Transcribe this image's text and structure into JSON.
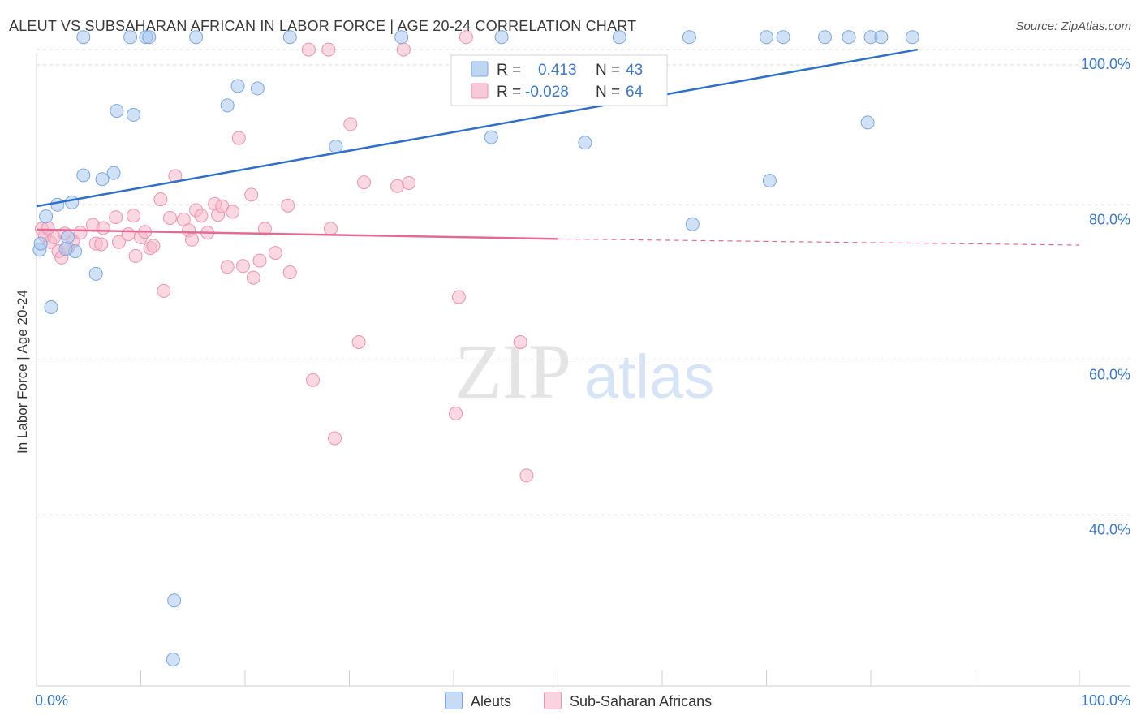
{
  "title": "ALEUT VS SUBSAHARAN AFRICAN IN LABOR FORCE | AGE 20-24 CORRELATION CHART",
  "source": "Source: ZipAtlas.com",
  "watermark": {
    "zip": "ZIP",
    "atlas": "atlas"
  },
  "colors": {
    "aleut_fill": "#a9c8ee",
    "aleut_stroke": "#7aa7de",
    "aleut_line": "#2f6fcc",
    "ssa_fill": "#f5b8cb",
    "ssa_stroke": "#ec92b0",
    "ssa_line": "#e56a93",
    "axis_text": "#3d78c9",
    "grid": "#d9d9d9"
  },
  "chart_data": {
    "type": "scatter",
    "xlabel": "",
    "ylabel": "In Labor Force | Age 20-24",
    "xlim": [
      0,
      100
    ],
    "ylim": [
      18,
      100
    ],
    "x_tick_labels": [
      "0.0%",
      "100.0%"
    ],
    "y_ticks": [
      40,
      60,
      80,
      100
    ],
    "y_tick_labels": [
      "40.0%",
      "60.0%",
      "80.0%",
      "100.0%"
    ],
    "grid": "horizontal dashed",
    "legend": {
      "placement": "top-center",
      "rows": [
        {
          "r_label": "R =",
          "r_value": "0.413",
          "n_label": "N =",
          "n_value": "43"
        },
        {
          "r_label": "R =",
          "r_value": "-0.028",
          "n_label": "N =",
          "n_value": "64"
        }
      ]
    },
    "series": [
      {
        "name": "Aleuts",
        "trend": {
          "x0": 0,
          "y0": 79.8,
          "x1": 84.5,
          "y1": 100.0
        },
        "points": [
          [
            0.3,
            74.2
          ],
          [
            0.9,
            78.5
          ],
          [
            1.4,
            66.8
          ],
          [
            2.0,
            80.0
          ],
          [
            3.4,
            80.3
          ],
          [
            3.7,
            74.0
          ],
          [
            3.0,
            75.8
          ],
          [
            2.8,
            74.3
          ],
          [
            4.5,
            83.8
          ],
          [
            5.7,
            71.1
          ],
          [
            6.3,
            83.3
          ],
          [
            7.4,
            84.1
          ],
          [
            7.7,
            92.1
          ],
          [
            9.3,
            91.6
          ],
          [
            4.5,
            101.6
          ],
          [
            9.0,
            101.6
          ],
          [
            10.5,
            101.6
          ],
          [
            10.8,
            101.6
          ],
          [
            15.3,
            101.6
          ],
          [
            18.3,
            92.8
          ],
          [
            19.3,
            95.3
          ],
          [
            21.2,
            95.0
          ],
          [
            24.3,
            101.6
          ],
          [
            28.7,
            87.5
          ],
          [
            35.0,
            101.6
          ],
          [
            43.6,
            88.7
          ],
          [
            44.6,
            101.6
          ],
          [
            52.6,
            88.0
          ],
          [
            55.9,
            101.6
          ],
          [
            62.9,
            77.5
          ],
          [
            62.6,
            101.6
          ],
          [
            70.3,
            83.1
          ],
          [
            70.0,
            101.6
          ],
          [
            71.6,
            101.6
          ],
          [
            75.6,
            101.6
          ],
          [
            77.9,
            101.6
          ],
          [
            80.0,
            101.6
          ],
          [
            81.0,
            101.6
          ],
          [
            84.0,
            101.6
          ],
          [
            79.7,
            90.6
          ],
          [
            13.2,
            29.0
          ],
          [
            13.1,
            21.4
          ],
          [
            0.4,
            75.0
          ]
        ]
      },
      {
        "name": "Sub-Saharan Africans",
        "trend": {
          "x0": 0,
          "y0": 76.8,
          "x1": 50,
          "y1": 75.6,
          "dash_to_x": 100,
          "dash_to_y": 74.8
        },
        "points": [
          [
            0.8,
            76.0
          ],
          [
            1.3,
            75.2
          ],
          [
            1.7,
            75.8
          ],
          [
            2.1,
            74.0
          ],
          [
            2.4,
            73.2
          ],
          [
            2.7,
            76.3
          ],
          [
            3.5,
            75.3
          ],
          [
            4.2,
            76.4
          ],
          [
            5.4,
            77.4
          ],
          [
            5.7,
            75.0
          ],
          [
            6.4,
            77.0
          ],
          [
            7.6,
            78.4
          ],
          [
            7.9,
            75.2
          ],
          [
            8.8,
            76.2
          ],
          [
            9.3,
            78.6
          ],
          [
            9.5,
            73.4
          ],
          [
            10.0,
            75.8
          ],
          [
            10.4,
            76.5
          ],
          [
            10.9,
            74.4
          ],
          [
            11.2,
            74.7
          ],
          [
            11.9,
            80.7
          ],
          [
            12.2,
            68.9
          ],
          [
            12.8,
            78.3
          ],
          [
            13.3,
            83.7
          ],
          [
            14.1,
            78.1
          ],
          [
            14.6,
            76.7
          ],
          [
            14.9,
            75.5
          ],
          [
            15.3,
            79.3
          ],
          [
            15.8,
            78.6
          ],
          [
            16.4,
            76.4
          ],
          [
            17.1,
            80.1
          ],
          [
            17.4,
            78.7
          ],
          [
            17.8,
            79.8
          ],
          [
            18.3,
            72.0
          ],
          [
            18.8,
            79.1
          ],
          [
            19.4,
            88.6
          ],
          [
            19.8,
            72.1
          ],
          [
            20.6,
            81.3
          ],
          [
            20.8,
            70.6
          ],
          [
            21.4,
            72.8
          ],
          [
            21.9,
            76.9
          ],
          [
            22.9,
            73.8
          ],
          [
            24.1,
            79.9
          ],
          [
            24.3,
            71.3
          ],
          [
            26.1,
            100.0
          ],
          [
            26.5,
            57.4
          ],
          [
            28.0,
            100.0
          ],
          [
            28.2,
            76.9
          ],
          [
            28.6,
            49.9
          ],
          [
            30.1,
            90.4
          ],
          [
            30.9,
            62.3
          ],
          [
            31.4,
            82.9
          ],
          [
            34.6,
            82.4
          ],
          [
            35.7,
            82.8
          ],
          [
            35.2,
            100.0
          ],
          [
            40.2,
            53.1
          ],
          [
            40.5,
            68.1
          ],
          [
            41.2,
            101.6
          ],
          [
            46.4,
            62.3
          ],
          [
            47.0,
            45.1
          ],
          [
            0.5,
            76.9
          ],
          [
            1.1,
            77.0
          ],
          [
            3.0,
            74.4
          ],
          [
            6.2,
            74.9
          ]
        ]
      }
    ]
  },
  "legend_bottom": [
    {
      "label": "Aleuts"
    },
    {
      "label": "Sub-Saharan Africans"
    }
  ]
}
